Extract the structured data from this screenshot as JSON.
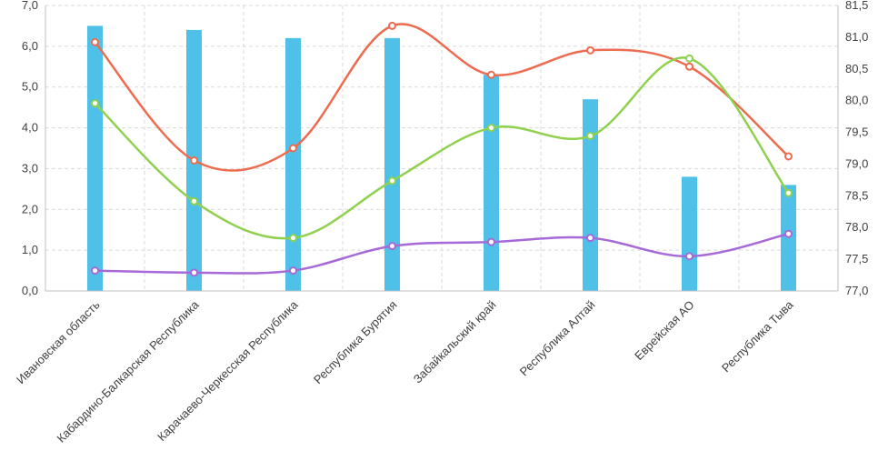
{
  "chart_data": {
    "type": "bar",
    "categories": [
      "Ивановская область",
      "Кабардино-Балкарская Республика",
      "Карачаево-Черкесская Республика",
      "Республика Бурятия",
      "Забайкальский край",
      "Республика Алтай",
      "Еврейская АО",
      "Республика Тыва"
    ],
    "y_left": {
      "min": 0,
      "max": 7,
      "step": 1,
      "tick_labels": [
        "0,0",
        "1,0",
        "2,0",
        "3,0",
        "4,0",
        "5,0",
        "6,0",
        "7,0"
      ]
    },
    "y_right": {
      "min": 77,
      "max": 81.5,
      "step": 0.5,
      "tick_labels": [
        "77,0",
        "77,5",
        "78,0",
        "78,5",
        "79,0",
        "79,5",
        "80,0",
        "80,5",
        "81,0",
        "81,5"
      ]
    },
    "grid": true,
    "legend": "none",
    "series": [
      {
        "type": "bar",
        "axis": "left",
        "color": "#4fc1e9",
        "values": [
          6.5,
          6.4,
          6.2,
          6.2,
          5.3,
          4.7,
          2.8,
          2.6
        ]
      },
      {
        "type": "line",
        "axis": "left",
        "color": "#ed6b4f",
        "values": [
          6.1,
          3.2,
          3.5,
          6.5,
          5.3,
          5.9,
          5.5,
          3.3
        ]
      },
      {
        "type": "line",
        "axis": "left",
        "color": "#8fd14f",
        "values": [
          4.6,
          2.2,
          1.3,
          2.7,
          4.0,
          3.8,
          5.7,
          2.4
        ]
      },
      {
        "type": "line",
        "axis": "left",
        "color": "#a569d8",
        "values": [
          0.5,
          0.45,
          0.5,
          1.1,
          1.2,
          1.3,
          0.85,
          1.4
        ]
      }
    ]
  }
}
